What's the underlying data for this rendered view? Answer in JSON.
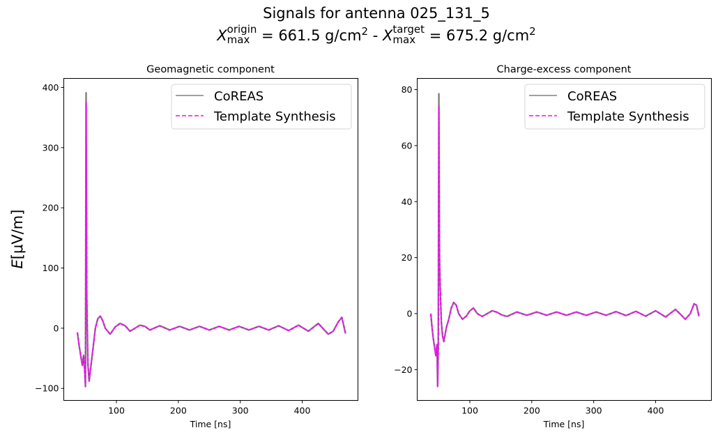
{
  "figure": {
    "title_line1": "Signals for antenna 025_131_5",
    "title_line2": {
      "x_symbol": "X",
      "origin_sup": "origin",
      "origin_sub": "max",
      "origin_value": " =  661.5 g/cm",
      "sep": " -  ",
      "target_sup": "target",
      "target_sub": "max",
      "target_value": " =  675.2 g/cm",
      "power": "2"
    },
    "ylabel": "E[μV/m]"
  },
  "legend": {
    "coreas": "CoREAS",
    "template": "Template Synthesis"
  },
  "colors": {
    "coreas": "#808080",
    "template": "#ff00ff"
  },
  "chart_data": [
    {
      "type": "line",
      "title": "Geomagnetic component",
      "xlabel": "Time [ns]",
      "ylabel": "E[μV/m]",
      "xlim": [
        15,
        490
      ],
      "ylim": [
        -120,
        415
      ],
      "xticks": [
        "100",
        "200",
        "300",
        "400"
      ],
      "yticks": [
        "−100",
        "0",
        "100",
        "200",
        "300",
        "400"
      ],
      "legend_position": "upper right",
      "series": [
        {
          "name": "CoREAS",
          "style": "solid",
          "peak": {
            "x": 51,
            "y": 391
          },
          "min": {
            "x": 50,
            "y": -97
          }
        },
        {
          "name": "Template Synthesis",
          "style": "dashed",
          "peak": {
            "x": 51,
            "y": 375
          },
          "min": {
            "x": 50,
            "y": -95
          }
        }
      ],
      "x": [
        37,
        40,
        43,
        45,
        47,
        49,
        50,
        51,
        52,
        54,
        56,
        58,
        62,
        66,
        70,
        74,
        78,
        82,
        90,
        98,
        106,
        114,
        122,
        130,
        138,
        146,
        154,
        170,
        186,
        202,
        218,
        234,
        250,
        266,
        282,
        298,
        314,
        330,
        346,
        362,
        378,
        394,
        410,
        426,
        442,
        450,
        458,
        464,
        470
      ],
      "values": [
        -7,
        -30,
        -50,
        -62,
        -45,
        -75,
        -97,
        391,
        60,
        -60,
        -88,
        -70,
        -35,
        0,
        16,
        20,
        12,
        0,
        -10,
        2,
        8,
        4,
        -5,
        0,
        5,
        3,
        -3,
        4,
        -3,
        3,
        -3,
        3,
        -3,
        3,
        -3,
        3,
        -3,
        3,
        -3,
        4,
        -4,
        5,
        -5,
        8,
        -10,
        -5,
        10,
        18,
        -9
      ]
    },
    {
      "type": "line",
      "title": "Charge-excess component",
      "xlabel": "Time [ns]",
      "ylabel": "",
      "xlim": [
        15,
        490
      ],
      "ylim": [
        -31,
        84
      ],
      "xticks": [
        "100",
        "200",
        "300",
        "400"
      ],
      "yticks": [
        "−20",
        "0",
        "20",
        "40",
        "60",
        "80"
      ],
      "legend_position": "upper right",
      "series": [
        {
          "name": "CoREAS",
          "style": "solid",
          "peak": {
            "x": 50,
            "y": 78.5
          },
          "min": {
            "x": 48,
            "y": -26.5
          }
        },
        {
          "name": "Template Synthesis",
          "style": "dashed",
          "peak": {
            "x": 50,
            "y": 74
          },
          "min": {
            "x": 48,
            "y": -25
          }
        }
      ],
      "x": [
        37,
        39,
        41,
        43,
        45,
        47,
        48,
        49,
        50,
        51,
        52,
        54,
        56,
        58,
        62,
        66,
        70,
        74,
        78,
        82,
        88,
        94,
        100,
        106,
        112,
        120,
        128,
        136,
        144,
        152,
        160,
        176,
        192,
        208,
        224,
        240,
        256,
        272,
        288,
        304,
        320,
        336,
        352,
        368,
        384,
        400,
        416,
        432,
        448,
        456,
        462,
        466,
        470
      ],
      "values": [
        0,
        -5,
        -9,
        -12,
        -15,
        -11,
        -26,
        -12,
        78,
        20,
        10,
        -3,
        -8,
        -10,
        -5,
        -2,
        2,
        4,
        3,
        0,
        -2,
        -1,
        1,
        2,
        0,
        -1,
        0,
        1,
        0.5,
        -0.5,
        -1,
        0.6,
        -0.6,
        0.6,
        -0.6,
        0.6,
        -0.6,
        0.6,
        -0.6,
        0.6,
        -0.6,
        0.7,
        -0.7,
        0.8,
        -0.9,
        1,
        -1.2,
        1.5,
        -2,
        0,
        3.5,
        3,
        -1
      ]
    }
  ]
}
